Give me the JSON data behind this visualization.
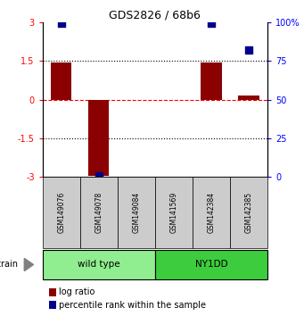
{
  "title": "GDS2826 / 68b6",
  "samples": [
    "GSM149076",
    "GSM149078",
    "GSM149084",
    "GSM141569",
    "GSM142384",
    "GSM142385"
  ],
  "log_ratio": [
    1.42,
    -2.97,
    0.0,
    0.0,
    1.45,
    0.15
  ],
  "percentile_rank": [
    99.5,
    1.0,
    null,
    null,
    99.5,
    82.0
  ],
  "ylim_left": [
    -3,
    3
  ],
  "ylim_right": [
    0,
    100
  ],
  "yticks_left": [
    -3,
    -1.5,
    0,
    1.5,
    3
  ],
  "yticks_right": [
    0,
    25,
    50,
    75,
    100
  ],
  "yticklabels_left": [
    "-3",
    "-1.5",
    "0",
    "1.5",
    "3"
  ],
  "yticklabels_right": [
    "0",
    "25",
    "50",
    "75",
    "100%"
  ],
  "hlines_dotted": [
    -1.5,
    1.5
  ],
  "hline_red_dashed": 0,
  "groups": [
    {
      "label": "wild type",
      "start": 0,
      "end": 3,
      "color": "#90EE90"
    },
    {
      "label": "NY1DD",
      "start": 3,
      "end": 6,
      "color": "#3dcc3d"
    }
  ],
  "bar_color": "#8B0000",
  "blue_square_color": "#00008B",
  "bar_width": 0.55,
  "blue_square_size": 40,
  "legend_items": [
    {
      "label": "log ratio",
      "color": "#8B0000"
    },
    {
      "label": "percentile rank within the sample",
      "color": "#00008B"
    }
  ],
  "bg_color": "#ffffff",
  "sample_bg_color": "#cccccc"
}
